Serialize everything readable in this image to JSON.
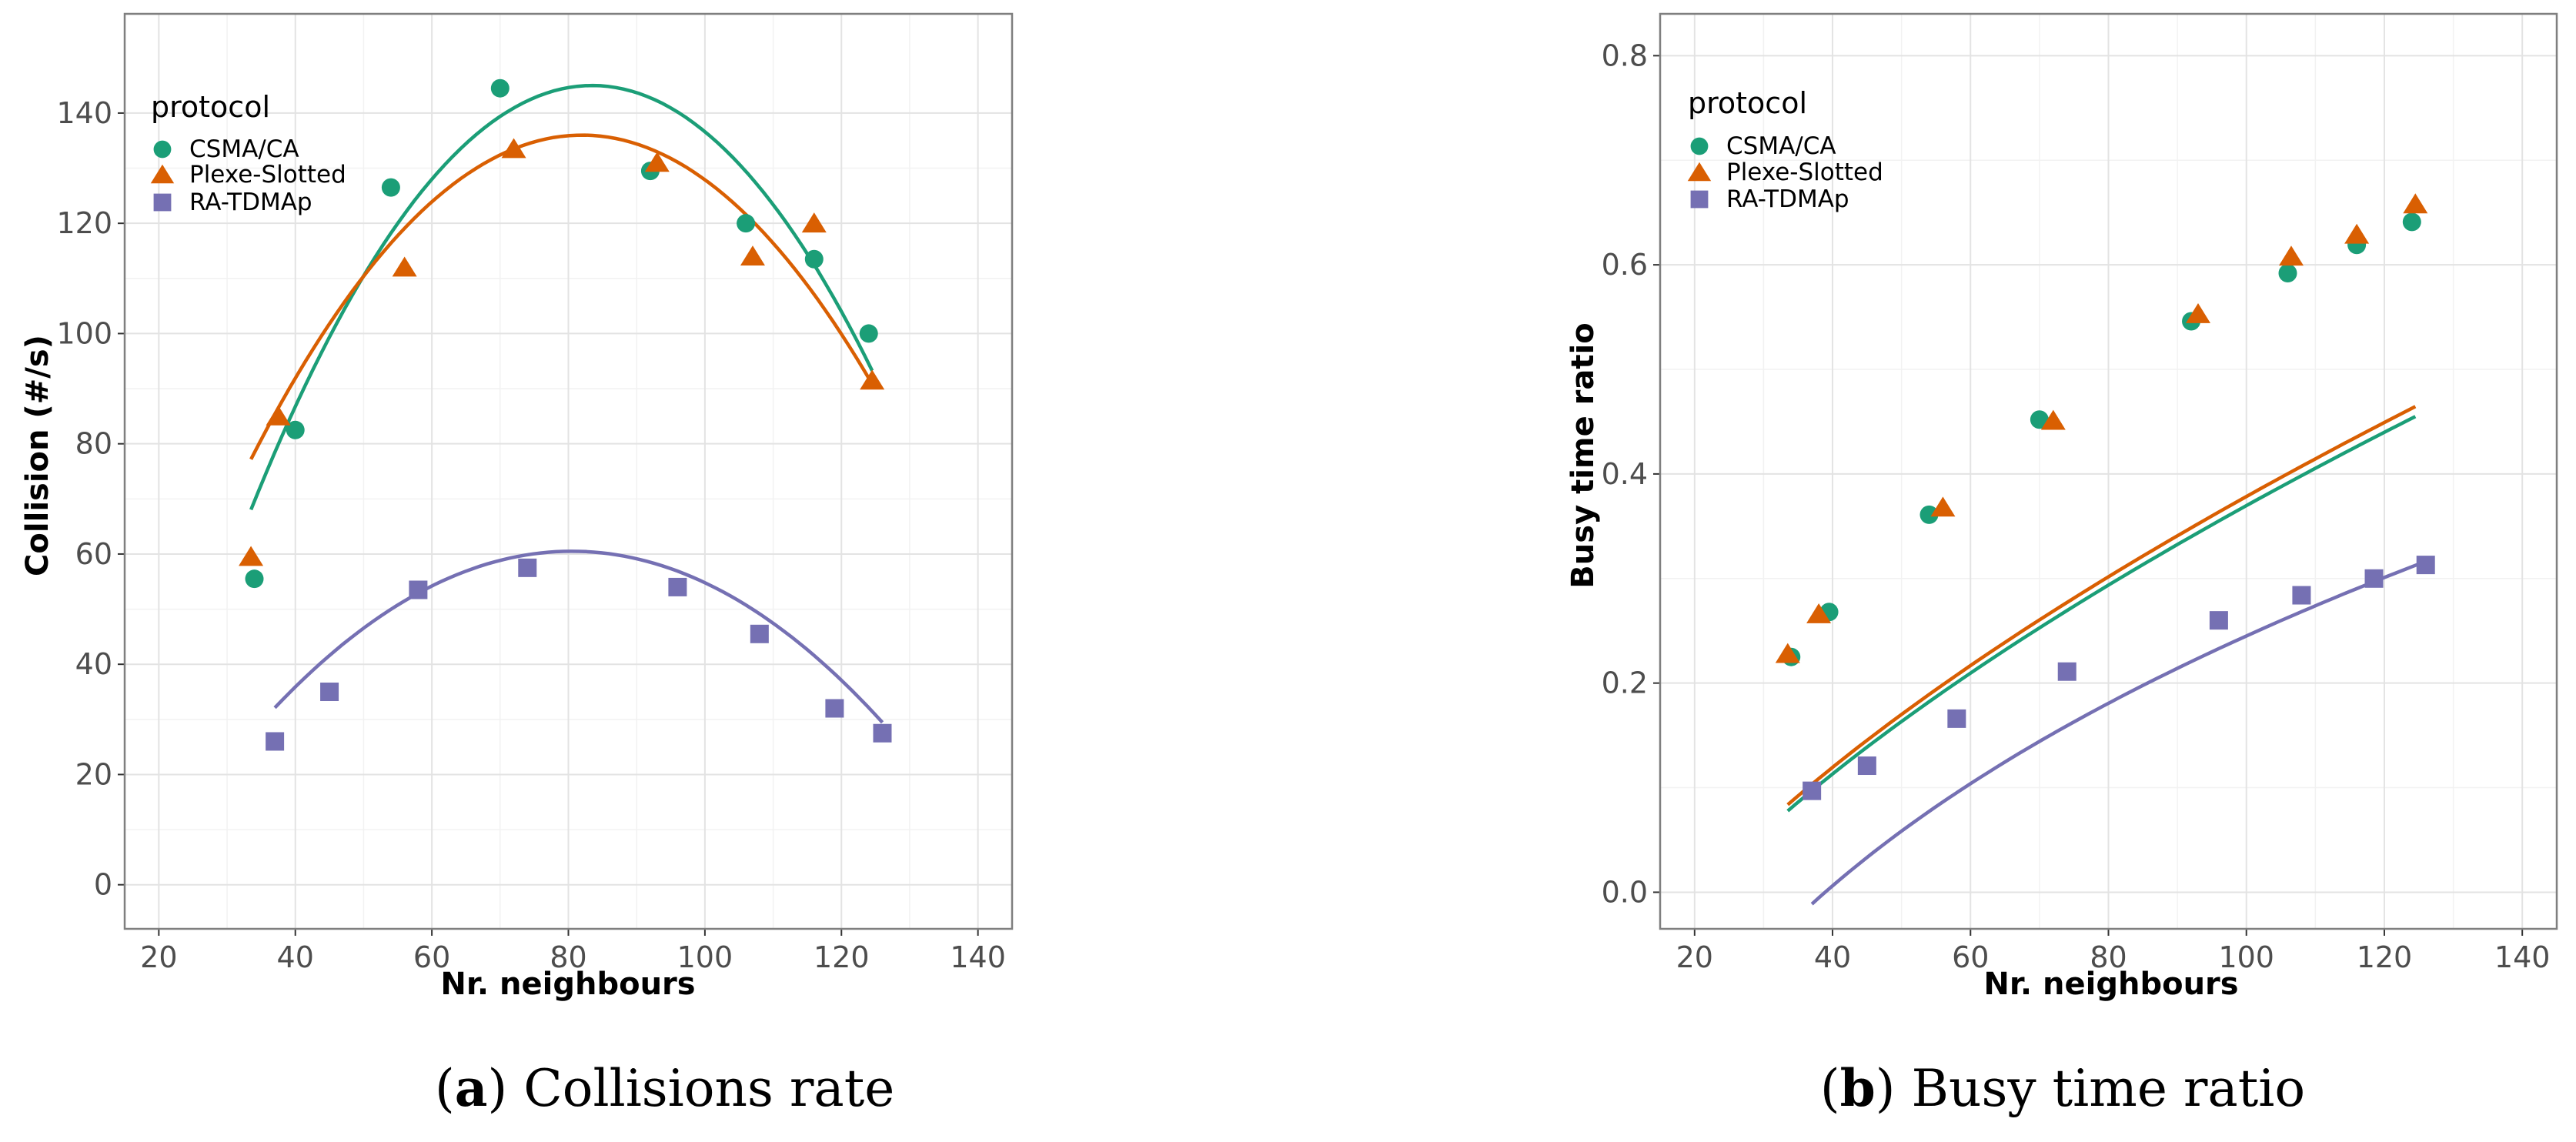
{
  "colors": {
    "csma": "#1b9e77",
    "plexe": "#d95f02",
    "ratdma": "#7570b3"
  },
  "chart_data": [
    {
      "type": "scatter",
      "caption_letter": "a",
      "caption_text": "Collisions rate",
      "xlabel": "Nr. neighbours",
      "ylabel": "Collision (#/s)",
      "xlim": [
        15,
        145
      ],
      "ylim": [
        -8,
        158
      ],
      "xticks": [
        20,
        40,
        60,
        80,
        100,
        120,
        140
      ],
      "yticks": [
        0,
        20,
        40,
        60,
        80,
        100,
        120,
        140
      ],
      "legend": {
        "title": "protocol",
        "position": "top-left"
      },
      "series": [
        {
          "name": "CSMA/CA",
          "shape": "circle",
          "color": "#1b9e77",
          "x": [
            34,
            40,
            54,
            70,
            92,
            106,
            116,
            124
          ],
          "y": [
            55.5,
            82.5,
            126.5,
            144.5,
            129.5,
            120,
            113.5,
            100
          ],
          "fit": {
            "a": -0.03078,
            "h": 83.5,
            "k": 145,
            "x_from": 33.5,
            "x_to": 124.5
          }
        },
        {
          "name": "Plexe-Slotted",
          "shape": "triangle",
          "color": "#d95f02",
          "x": [
            33.5,
            37.5,
            56,
            72,
            93,
            107,
            116,
            124.5
          ],
          "y": [
            59.5,
            85,
            112,
            133.5,
            131,
            114,
            120,
            91.5
          ],
          "fit": {
            "a": -0.025,
            "h": 82,
            "k": 136,
            "x_from": 33.5,
            "x_to": 124.5
          }
        },
        {
          "name": "RA-TDMAp",
          "shape": "square",
          "color": "#7570b3",
          "x": [
            37,
            45,
            58,
            74,
            96,
            108,
            119,
            126
          ],
          "y": [
            26,
            35,
            53.5,
            57.5,
            54,
            45.5,
            32,
            27.5
          ],
          "fit": {
            "a": -0.015,
            "h": 80.5,
            "k": 60.5,
            "x_from": 37,
            "x_to": 126
          }
        }
      ]
    },
    {
      "type": "scatter",
      "caption_letter": "b",
      "caption_text": "Busy time ratio",
      "xlabel": "Nr. neighbours",
      "ylabel": "Busy time ratio",
      "xlim": [
        15,
        145
      ],
      "ylim": [
        -0.035,
        0.84
      ],
      "xticks": [
        20,
        40,
        60,
        80,
        100,
        120,
        140
      ],
      "yticks": [
        0.0,
        0.2,
        0.4,
        0.6,
        0.8
      ],
      "legend": {
        "title": "protocol",
        "position": "top-left"
      },
      "series": [
        {
          "name": "CSMA/CA",
          "shape": "circle",
          "color": "#1b9e77",
          "x": [
            34,
            39.5,
            54,
            70,
            92,
            106,
            116,
            124
          ],
          "y": [
            0.225,
            0.268,
            0.361,
            0.452,
            0.546,
            0.592,
            0.619,
            0.641
          ],
          "fit": {
            "a": 0.03828,
            "b": 0.6,
            "c": -0.237,
            "x_from": 33.5,
            "x_to": 124.5
          }
        },
        {
          "name": "Plexe-Slotted",
          "shape": "triangle",
          "color": "#d95f02",
          "x": [
            33.5,
            38,
            56,
            72,
            93,
            106.5,
            116,
            124.5
          ],
          "y": [
            0.228,
            0.266,
            0.368,
            0.451,
            0.553,
            0.608,
            0.629,
            0.658
          ],
          "fit": {
            "a": 0.03864,
            "b": 0.6,
            "c": -0.234,
            "x_from": 33.5,
            "x_to": 124.5
          }
        },
        {
          "name": "RA-TDMAp",
          "shape": "square",
          "color": "#7570b3",
          "x": [
            37,
            45,
            58,
            74,
            96,
            108,
            118.5,
            126
          ],
          "y": [
            0.097,
            0.121,
            0.166,
            0.211,
            0.26,
            0.284,
            0.3,
            0.313
          ],
          "fit": {
            "a": 0.2497,
            "b": 0.3,
            "c": -0.749,
            "x_from": 37,
            "x_to": 126
          }
        }
      ]
    }
  ]
}
